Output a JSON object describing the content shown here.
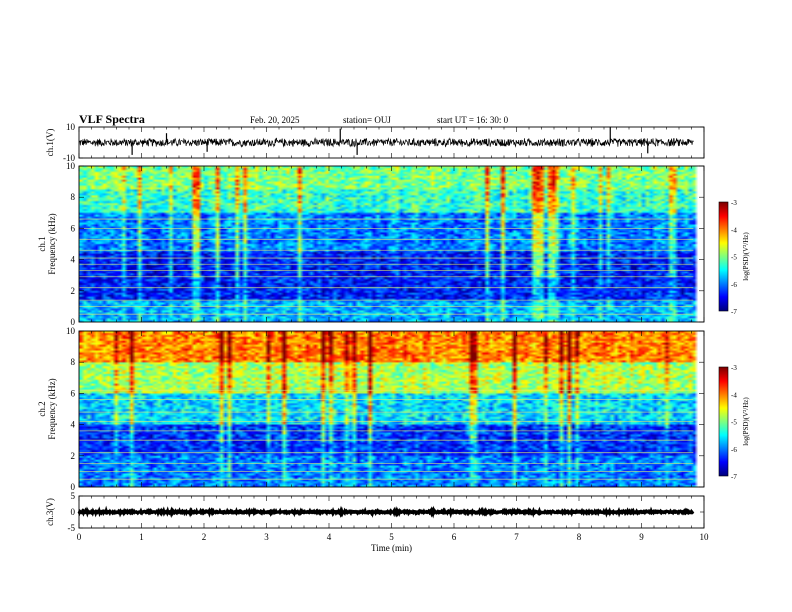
{
  "header": {
    "title": "VLF Spectra",
    "date": "Feb. 20, 2025",
    "station": "station= OUJ",
    "start": "start  UT  =   16: 30: 0"
  },
  "chart_data": [
    {
      "type": "line",
      "name": "ch1-waveform",
      "ylabel": "ch.1(V)",
      "ylim": [
        -10,
        10
      ],
      "yticks": [
        "10",
        "-10"
      ],
      "baseline": 0,
      "noise_amplitude": 3,
      "spikes": [
        {
          "x": 0.85,
          "y": -8
        },
        {
          "x": 1.4,
          "y": 6
        },
        {
          "x": 2.05,
          "y": -6
        },
        {
          "x": 4.18,
          "y": 9
        },
        {
          "x": 4.45,
          "y": -8
        },
        {
          "x": 8.5,
          "y": 10
        },
        {
          "x": 9.1,
          "y": -7
        }
      ]
    },
    {
      "type": "heatmap",
      "name": "ch1-spectrogram",
      "ylabel_top": "ch.1",
      "ylabel": "Frequency (kHz)",
      "ylim": [
        0,
        10
      ],
      "yticks": [
        "0",
        "2",
        "4",
        "6",
        "8",
        "10"
      ],
      "colorbar": {
        "label": "log(PSD)(V²/Hz)",
        "ticks": [
          "-3",
          "-4",
          "-5",
          "-6",
          "-7"
        ],
        "range": [
          -7,
          -3
        ]
      },
      "bands": [
        {
          "from": 0,
          "to": 1.5,
          "level": -5.8
        },
        {
          "from": 1.5,
          "to": 4.5,
          "level": -6.4
        },
        {
          "from": 4.5,
          "to": 7,
          "level": -6.0
        },
        {
          "from": 7,
          "to": 8.5,
          "level": -5.3
        },
        {
          "from": 8.5,
          "to": 10,
          "level": -5.0
        }
      ],
      "lines_khz": [
        0.5,
        1.0,
        1.4,
        2.2,
        2.9,
        3.3,
        3.7,
        4.1,
        4.6,
        5.3,
        6.0,
        6.6
      ],
      "max_time": 9.83
    },
    {
      "type": "heatmap",
      "name": "ch2-spectrogram",
      "ylabel_top": "ch.2",
      "ylabel": "Frequency (kHz)",
      "ylim": [
        0,
        10
      ],
      "yticks": [
        "0",
        "2",
        "4",
        "6",
        "8",
        "10"
      ],
      "colorbar": {
        "label": "log(PSD)(V²/Hz)",
        "ticks": [
          "-3",
          "-4",
          "-5",
          "-6",
          "-7"
        ],
        "range": [
          -7,
          -3
        ]
      },
      "bands": [
        {
          "from": 0,
          "to": 2,
          "level": -6.0
        },
        {
          "from": 2,
          "to": 4,
          "level": -6.3
        },
        {
          "from": 4,
          "to": 6,
          "level": -5.6
        },
        {
          "from": 6,
          "to": 8,
          "level": -4.8
        },
        {
          "from": 8,
          "to": 10,
          "level": -4.0
        }
      ],
      "lines_khz": [
        0.5,
        1.0,
        1.5,
        2.2,
        3.0,
        3.6,
        4.2,
        4.8,
        5.6,
        6.2
      ],
      "max_time": 9.83
    },
    {
      "type": "line",
      "name": "ch3-waveform",
      "ylabel": "ch.3(V)",
      "ylim": [
        -5,
        5
      ],
      "yticks": [
        "5",
        "0",
        "-5"
      ],
      "baseline": 0,
      "noise_amplitude": 0.3
    }
  ],
  "xaxis": {
    "label": "Time  (min)",
    "xlim": [
      0,
      10
    ],
    "ticks": [
      "0",
      "1",
      "2",
      "3",
      "4",
      "5",
      "6",
      "7",
      "8",
      "9",
      "10"
    ]
  }
}
